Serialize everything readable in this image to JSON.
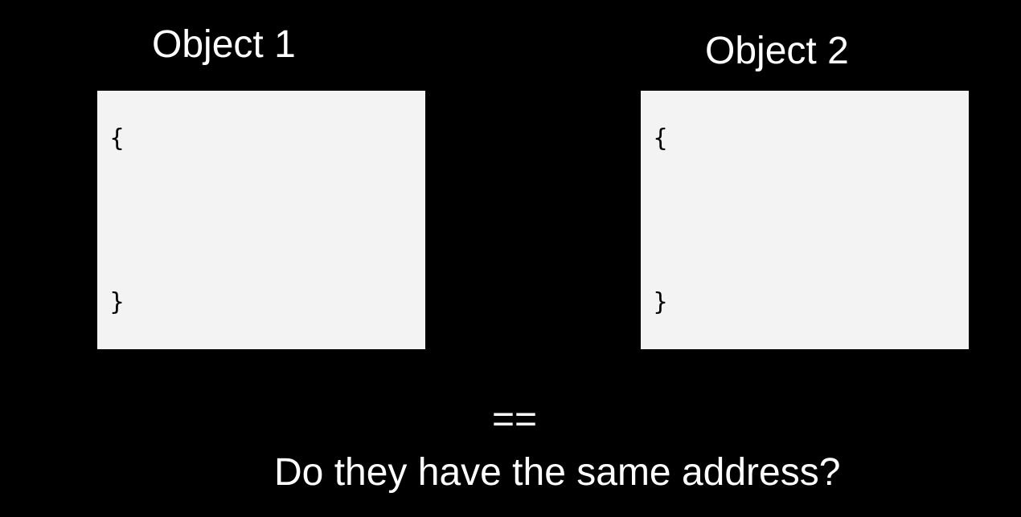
{
  "objects": [
    {
      "title": "Object 1",
      "open_brace": "{",
      "close_brace": "}"
    },
    {
      "title": "Object 2",
      "open_brace": "{",
      "close_brace": "}"
    }
  ],
  "operator": "==",
  "question": "Do they have the same address?",
  "colors": {
    "background": "#000000",
    "box_fill": "#f3f3f3",
    "text": "#ffffff",
    "brace": "#000000"
  }
}
